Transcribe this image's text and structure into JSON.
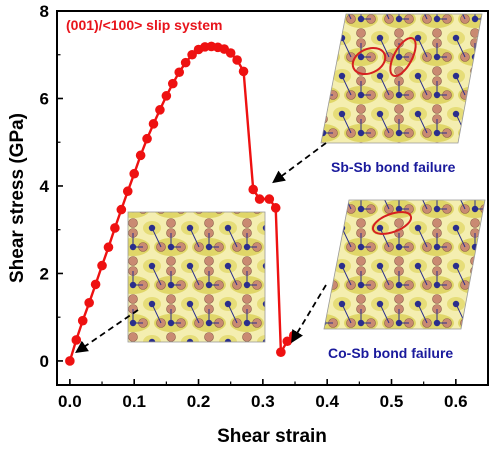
{
  "chart_data": {
    "type": "line",
    "title": "(001)/<100> slip system",
    "xlabel": "Shear strain",
    "ylabel": "Shear stress (GPa)",
    "xlim": [
      -0.02,
      0.65
    ],
    "ylim": [
      -0.55,
      8
    ],
    "xticks": [
      "0.0",
      "0.1",
      "0.2",
      "0.3",
      "0.4",
      "0.5",
      "0.6"
    ],
    "xtick_values": [
      0.0,
      0.1,
      0.2,
      0.3,
      0.4,
      0.5,
      0.6
    ],
    "yticks": [
      "0",
      "2",
      "4",
      "6",
      "8"
    ],
    "ytick_values": [
      0,
      2,
      4,
      6,
      8
    ],
    "series": [
      {
        "color": "#ee1111",
        "x": [
          0.0,
          0.01,
          0.02,
          0.03,
          0.04,
          0.05,
          0.06,
          0.07,
          0.08,
          0.09,
          0.1,
          0.11,
          0.12,
          0.13,
          0.14,
          0.15,
          0.16,
          0.17,
          0.18,
          0.19,
          0.2,
          0.21,
          0.22,
          0.23,
          0.24,
          0.25,
          0.26,
          0.27,
          0.285,
          0.295,
          0.31,
          0.32,
          0.328,
          0.338,
          0.348
        ],
        "y": [
          0.0,
          0.48,
          0.92,
          1.33,
          1.75,
          2.18,
          2.6,
          3.04,
          3.46,
          3.88,
          4.28,
          4.7,
          5.08,
          5.42,
          5.74,
          6.06,
          6.34,
          6.6,
          6.82,
          7.0,
          7.12,
          7.18,
          7.19,
          7.17,
          7.13,
          7.04,
          6.88,
          6.62,
          3.92,
          3.7,
          3.7,
          3.5,
          0.2,
          0.45,
          0.58
        ]
      }
    ],
    "annotations": [
      {
        "text": "Sb-Sb bond failure",
        "color": "#1a1a9c"
      },
      {
        "text": "Co-Sb bond failure",
        "color": "#1a1a9c"
      }
    ],
    "grid": false,
    "legend": "none"
  },
  "colors": {
    "line": "#ee1111",
    "title": "#e8141b",
    "annotation": "#1a1a9c",
    "isosurface": "#e2d96a",
    "sb_atom": "#c98a72",
    "co_atom": "#2a2e8c"
  }
}
